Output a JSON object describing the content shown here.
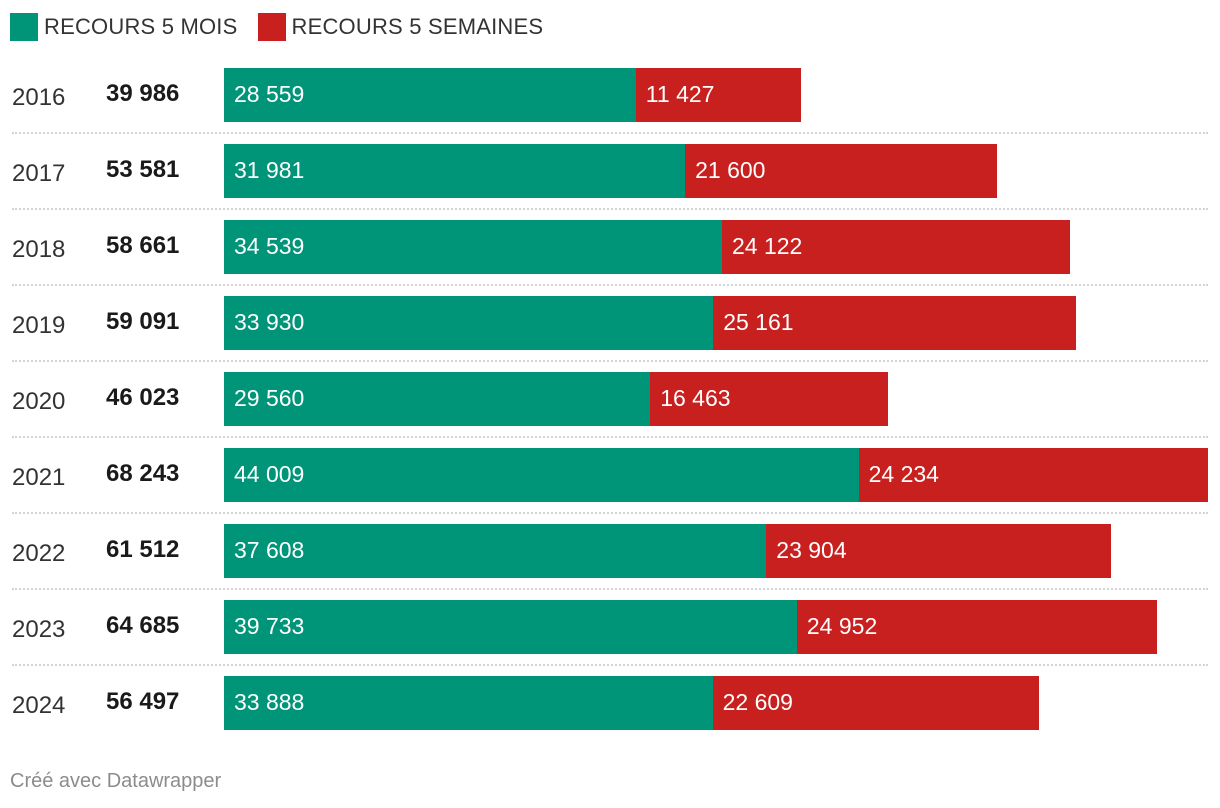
{
  "colors": {
    "mois": "#009479",
    "semaines": "#c81f1f"
  },
  "footer": {
    "credit": "Créé avec Datawrapper"
  },
  "chart_data": {
    "type": "bar",
    "orientation": "horizontal",
    "stacked": true,
    "legend_position": "top-left",
    "categories": [
      "2016",
      "2017",
      "2018",
      "2019",
      "2020",
      "2021",
      "2022",
      "2023",
      "2024"
    ],
    "totals_label": [
      "39 986",
      "53 581",
      "58 661",
      "59 091",
      "46 023",
      "68 243",
      "61 512",
      "64 685",
      "56 497"
    ],
    "totals": [
      39986,
      53581,
      58661,
      59091,
      46023,
      68243,
      61512,
      64685,
      56497
    ],
    "series": [
      {
        "name": "RECOURS 5 MOIS",
        "color": "#009479",
        "values": [
          28559,
          31981,
          34539,
          33930,
          29560,
          44009,
          37608,
          39733,
          33888
        ],
        "labels": [
          "28 559",
          "31 981",
          "34 539",
          "33 930",
          "29 560",
          "44 009",
          "37 608",
          "39 733",
          "33 888"
        ]
      },
      {
        "name": "RECOURS 5 SEMAINES",
        "color": "#c81f1f",
        "values": [
          11427,
          21600,
          24122,
          25161,
          16463,
          24234,
          23904,
          24952,
          22609
        ],
        "labels": [
          "11 427",
          "21 600",
          "24 122",
          "25 161",
          "16 463",
          "24 234",
          "23 904",
          "24 952",
          "22 609"
        ]
      }
    ]
  }
}
